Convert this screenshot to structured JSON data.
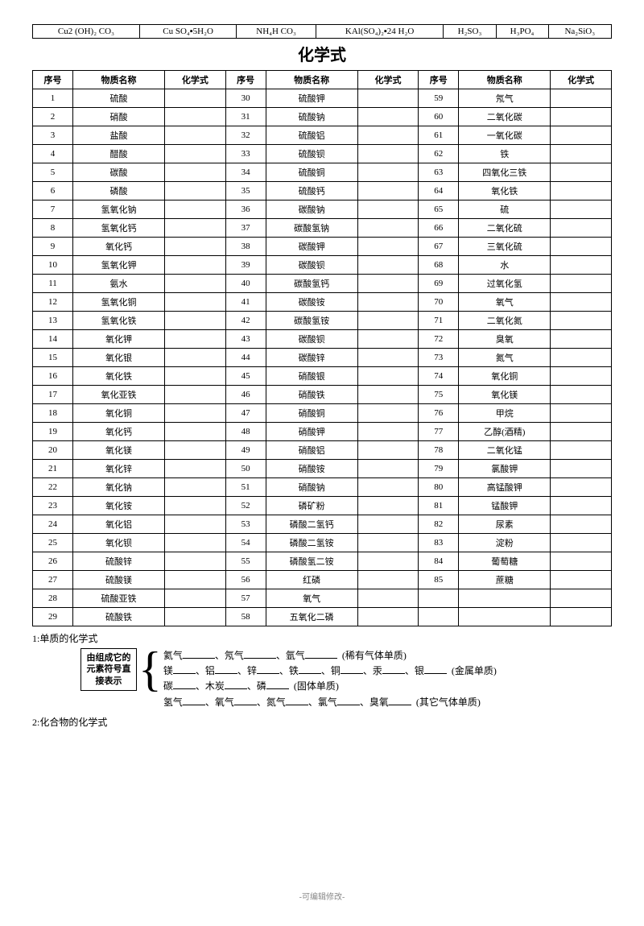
{
  "topRow": [
    "Cu2 (OH)₂ CO₃",
    "Cu SO₄▪5H₂O",
    "NH₄H CO₃",
    "KAl(SO₄)₂▪24 H₂O",
    "H₂SO₃",
    "H₃PO₄",
    "Na₂SiO₃"
  ],
  "title": "化学式",
  "headers": [
    "序号",
    "物质名称",
    "化学式",
    "序号",
    "物质名称",
    "化学式",
    "序号",
    "物质名称",
    "化学式"
  ],
  "rows": [
    [
      "1",
      "硫酸",
      "",
      "30",
      "硫酸钾",
      "",
      "59",
      "氖气",
      ""
    ],
    [
      "2",
      "硝酸",
      "",
      "31",
      "硫酸钠",
      "",
      "60",
      "二氧化碳",
      ""
    ],
    [
      "3",
      "盐酸",
      "",
      "32",
      "硫酸铝",
      "",
      "61",
      "一氧化碳",
      ""
    ],
    [
      "4",
      "醋酸",
      "",
      "33",
      "硫酸钡",
      "",
      "62",
      "铁",
      ""
    ],
    [
      "5",
      "碳酸",
      "",
      "34",
      "硫酸铜",
      "",
      "63",
      "四氧化三铁",
      ""
    ],
    [
      "6",
      "磷酸",
      "",
      "35",
      "硫酸钙",
      "",
      "64",
      "氧化铁",
      ""
    ],
    [
      "7",
      "氢氧化钠",
      "",
      "36",
      "碳酸钠",
      "",
      "65",
      "硫",
      ""
    ],
    [
      "8",
      "氢氧化钙",
      "",
      "37",
      "碳酸氢钠",
      "",
      "66",
      "二氧化硫",
      ""
    ],
    [
      "9",
      "氧化钙",
      "",
      "38",
      "碳酸钾",
      "",
      "67",
      "三氧化硫",
      ""
    ],
    [
      "10",
      "氢氧化钾",
      "",
      "39",
      "碳酸钡",
      "",
      "68",
      "水",
      ""
    ],
    [
      "11",
      "氨水",
      "",
      "40",
      "碳酸氢钙",
      "",
      "69",
      "过氧化氢",
      ""
    ],
    [
      "12",
      "氢氧化铜",
      "",
      "41",
      "碳酸铵",
      "",
      "70",
      "氧气",
      ""
    ],
    [
      "13",
      "氢氧化铁",
      "",
      "42",
      "碳酸氢铵",
      "",
      "71",
      "二氧化氮",
      ""
    ],
    [
      "14",
      "氧化钾",
      "",
      "43",
      "碳酸钡",
      "",
      "72",
      "臭氧",
      ""
    ],
    [
      "15",
      "氧化银",
      "",
      "44",
      "碳酸锌",
      "",
      "73",
      "氮气",
      ""
    ],
    [
      "16",
      "氧化铁",
      "",
      "45",
      "硝酸银",
      "",
      "74",
      "氧化铜",
      ""
    ],
    [
      "17",
      "氧化亚铁",
      "",
      "46",
      "硝酸铁",
      "",
      "75",
      "氧化镁",
      ""
    ],
    [
      "18",
      "氧化铜",
      "",
      "47",
      "硝酸铜",
      "",
      "76",
      "甲烷",
      ""
    ],
    [
      "19",
      "氧化钙",
      "",
      "48",
      "硝酸钾",
      "",
      "77",
      "乙醇(酒精)",
      ""
    ],
    [
      "20",
      "氧化镁",
      "",
      "49",
      "硝酸铝",
      "",
      "78",
      "二氧化锰",
      ""
    ],
    [
      "21",
      "氧化锌",
      "",
      "50",
      "硝酸铵",
      "",
      "79",
      "氯酸钾",
      ""
    ],
    [
      "22",
      "氧化钠",
      "",
      "51",
      "硝酸钠",
      "",
      "80",
      "高锰酸钾",
      ""
    ],
    [
      "23",
      "氧化铵",
      "",
      "52",
      "磷矿粉",
      "",
      "81",
      "锰酸钾",
      ""
    ],
    [
      "24",
      "氧化铝",
      "",
      "53",
      "磷酸二氢钙",
      "",
      "82",
      "尿素",
      ""
    ],
    [
      "25",
      "氧化钡",
      "",
      "54",
      "磷酸二氢铵",
      "",
      "83",
      "淀粉",
      ""
    ],
    [
      "26",
      "硫酸锌",
      "",
      "55",
      "磷酸氢二铵",
      "",
      "84",
      "葡萄糖",
      ""
    ],
    [
      "27",
      "硫酸镁",
      "",
      "56",
      "红磷",
      "",
      "85",
      "蔗糖",
      ""
    ],
    [
      "28",
      "硫酸亚铁",
      "",
      "57",
      "氧气",
      "",
      "",
      "",
      ""
    ],
    [
      "29",
      "硫酸铁",
      "",
      "58",
      "五氧化二磷",
      "",
      "",
      "",
      ""
    ]
  ],
  "section1": "1:单质的化学式",
  "boxLabel": "由组成它的元素符号直接表示",
  "exLines": [
    {
      "items": [
        "氦气",
        "氖气",
        "氩气"
      ],
      "cat": "(稀有气体单质)",
      "wide": true
    },
    {
      "items": [
        "镁",
        "铝",
        "锌",
        "铁",
        "铜",
        "汞",
        "银"
      ],
      "cat": "(金属单质)"
    },
    {
      "items": [
        "碳",
        "木炭",
        "磷"
      ],
      "cat": "(固体单质)"
    },
    {
      "items": [
        "氢气",
        "氧气",
        "氮气",
        "氯气",
        "臭氧"
      ],
      "cat": "(其它气体单质)"
    }
  ],
  "section2": "2:化合物的化学式",
  "footer": "-可编辑修改-"
}
